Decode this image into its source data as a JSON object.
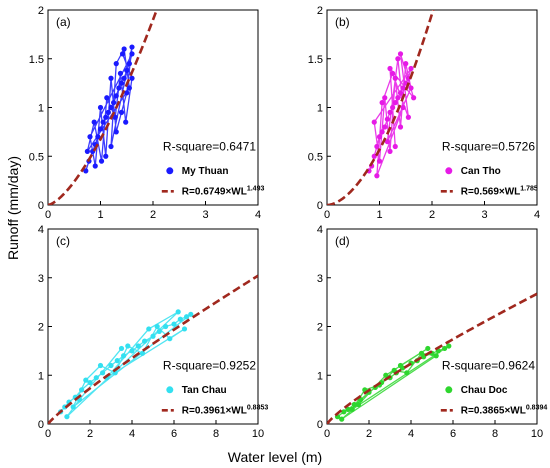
{
  "figure": {
    "ylabel": "Runoff (mm/day)",
    "xlabel": "Water level (m)"
  },
  "chart_data": [
    {
      "type": "scatter",
      "panel": "(a)",
      "station": "My Thuan",
      "r_square": "R-square=0.6471",
      "fit_label": "R=0.6749×WL",
      "fit_exponent": "1.493",
      "fit": {
        "a": 0.6749,
        "b": 1.493
      },
      "xlim": [
        0,
        4
      ],
      "ylim": [
        0,
        2
      ],
      "xticks": [
        "0",
        "1",
        "2",
        "3",
        "4"
      ],
      "yticks": [
        "0",
        "0.5",
        "1",
        "1.5",
        "2"
      ],
      "data_color": "#1a1aff",
      "fit_color": "#a0281e",
      "x": [
        0.72,
        0.78,
        0.85,
        0.9,
        0.95,
        1.0,
        1.05,
        1.1,
        1.15,
        1.2,
        1.25,
        1.3,
        1.35,
        1.4,
        1.45,
        1.5,
        1.55,
        1.6,
        0.8,
        0.9,
        1.0,
        1.1,
        1.2,
        1.3,
        1.4,
        1.5,
        1.6,
        1.2,
        1.3,
        1.45,
        1.55,
        0.75,
        0.88,
        1.02,
        1.12,
        1.28,
        1.38,
        1.48,
        1.6,
        1.42
      ],
      "y": [
        0.35,
        0.45,
        0.55,
        0.62,
        0.7,
        0.78,
        0.85,
        0.9,
        0.95,
        1.0,
        1.05,
        1.12,
        1.2,
        1.25,
        1.3,
        1.38,
        1.45,
        1.55,
        0.7,
        0.4,
        1.0,
        0.5,
        1.3,
        0.75,
        0.95,
        1.15,
        1.62,
        0.6,
        1.45,
        1.6,
        1.2,
        0.55,
        0.85,
        0.45,
        1.1,
        0.9,
        1.35,
        0.85,
        1.3,
        1.55
      ]
    },
    {
      "type": "scatter",
      "panel": "(b)",
      "station": "Can Tho",
      "r_square": "R-square=0.5726",
      "fit_label": "R=0.569×WL",
      "fit_exponent": "1.785",
      "fit": {
        "a": 0.569,
        "b": 1.785
      },
      "xlim": [
        0,
        4
      ],
      "ylim": [
        0,
        2
      ],
      "xticks": [
        "0",
        "1",
        "2",
        "3",
        "4"
      ],
      "yticks": [
        "0",
        "0.5",
        "1",
        "1.5",
        "2"
      ],
      "data_color": "#e61ae6",
      "fit_color": "#a0281e",
      "x": [
        0.8,
        0.85,
        0.9,
        0.95,
        1.0,
        1.05,
        1.1,
        1.15,
        1.2,
        1.25,
        1.3,
        1.35,
        1.4,
        1.45,
        1.5,
        1.55,
        1.6,
        0.9,
        1.0,
        1.1,
        1.2,
        1.3,
        1.4,
        1.5,
        1.6,
        1.15,
        1.35,
        1.45,
        0.95,
        1.05,
        1.25,
        1.55,
        1.4,
        1.65,
        1.2,
        1.3
      ],
      "y": [
        0.35,
        0.4,
        0.5,
        0.6,
        0.7,
        0.75,
        0.8,
        0.88,
        0.95,
        1.0,
        1.05,
        1.1,
        1.15,
        1.2,
        1.25,
        1.3,
        1.4,
        0.85,
        0.45,
        1.1,
        0.55,
        1.3,
        0.8,
        1.45,
        1.2,
        0.65,
        1.5,
        1.0,
        0.3,
        1.05,
        1.35,
        0.9,
        1.55,
        1.1,
        1.4,
        0.6
      ]
    },
    {
      "type": "scatter",
      "panel": "(c)",
      "station": "Tan Chau",
      "r_square": "R-square=0.9252",
      "fit_label": "R=0.3961×WL",
      "fit_exponent": "0.8853",
      "fit": {
        "a": 0.3961,
        "b": 0.8853
      },
      "xlim": [
        0,
        10
      ],
      "ylim": [
        0,
        4
      ],
      "xticks": [
        "0",
        "2",
        "4",
        "6",
        "8",
        "10"
      ],
      "yticks": [
        "0",
        "1",
        "2",
        "3",
        "4"
      ],
      "data_color": "#33e0f0",
      "fit_color": "#a0281e",
      "x": [
        0.6,
        0.8,
        1.0,
        1.3,
        1.6,
        2.0,
        2.3,
        2.6,
        3.0,
        3.3,
        3.6,
        4.0,
        4.3,
        4.6,
        5.0,
        5.3,
        5.6,
        6.0,
        6.3,
        6.6,
        6.8,
        1.2,
        1.8,
        2.5,
        3.2,
        3.8,
        4.5,
        5.2,
        5.8,
        6.5,
        2.8,
        4.8,
        6.2,
        0.9,
        1.5,
        3.5
      ],
      "y": [
        0.25,
        0.35,
        0.45,
        0.55,
        0.7,
        0.85,
        0.95,
        1.05,
        1.2,
        1.3,
        1.4,
        1.5,
        1.6,
        1.7,
        1.8,
        1.9,
        2.0,
        2.05,
        2.15,
        2.2,
        2.25,
        0.35,
        0.9,
        1.2,
        1.05,
        1.6,
        1.45,
        2.0,
        1.75,
        1.95,
        0.95,
        1.95,
        2.3,
        0.15,
        0.5,
        1.55
      ]
    },
    {
      "type": "scatter",
      "panel": "(d)",
      "station": "Chau Doc",
      "r_square": "R-square=0.9624",
      "fit_label": "R=0.3865×WL",
      "fit_exponent": "0.8394",
      "fit": {
        "a": 0.3865,
        "b": 0.8394
      },
      "xlim": [
        0,
        10
      ],
      "ylim": [
        0,
        4
      ],
      "xticks": [
        "0",
        "2",
        "4",
        "6",
        "8",
        "10"
      ],
      "yticks": [
        "0",
        "1",
        "2",
        "3",
        "4"
      ],
      "data_color": "#2ed62e",
      "fit_color": "#a0281e",
      "x": [
        0.5,
        0.8,
        1.0,
        1.3,
        1.6,
        2.0,
        2.3,
        2.6,
        3.0,
        3.3,
        3.6,
        4.0,
        4.3,
        4.6,
        5.0,
        5.3,
        5.6,
        5.8,
        1.2,
        1.8,
        2.5,
        3.2,
        3.8,
        4.5,
        5.2,
        0.7,
        1.5,
        2.8,
        4.8,
        3.5
      ],
      "y": [
        0.15,
        0.25,
        0.3,
        0.4,
        0.5,
        0.65,
        0.75,
        0.85,
        0.95,
        1.05,
        1.15,
        1.25,
        1.3,
        1.38,
        1.45,
        1.5,
        1.55,
        1.6,
        0.3,
        0.7,
        0.8,
        1.1,
        1.05,
        1.45,
        1.4,
        0.1,
        0.4,
        1.0,
        1.55,
        1.2
      ]
    }
  ]
}
